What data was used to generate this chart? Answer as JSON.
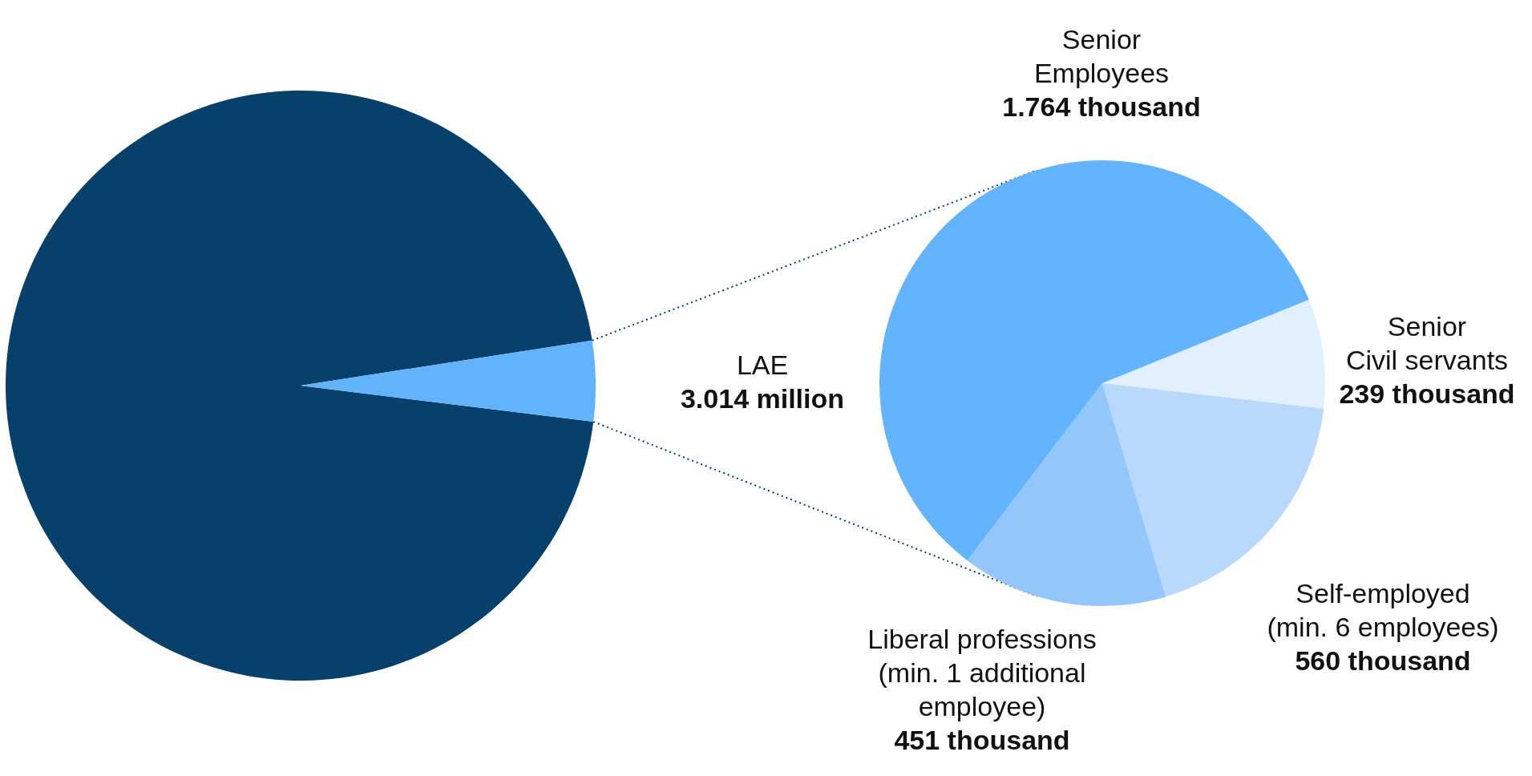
{
  "chart_data": [
    {
      "type": "pie",
      "categories": [
        null,
        "LAE"
      ],
      "values": [
        65.5,
        3.014
      ],
      "colors": [
        "#07406b",
        "#63b3fc"
      ],
      "value_labels": [
        null,
        "3.014 million"
      ]
    },
    {
      "type": "pie",
      "categories": [
        "Senior\nCivil servants",
        "Self-employed\n(min. 6 employees)",
        "Liberal professions\n(min. 1 additional\nemployee)",
        "Senior\nEmployees"
      ],
      "values": [
        239,
        560,
        451,
        1764
      ],
      "colors": [
        "#e2effc",
        "#b8d9fc",
        "#93c7fc",
        "#63b3fd"
      ],
      "value_labels": [
        "239 thousand",
        "560 thousand",
        "451 thousand",
        "1.764 thousand"
      ]
    }
  ]
}
